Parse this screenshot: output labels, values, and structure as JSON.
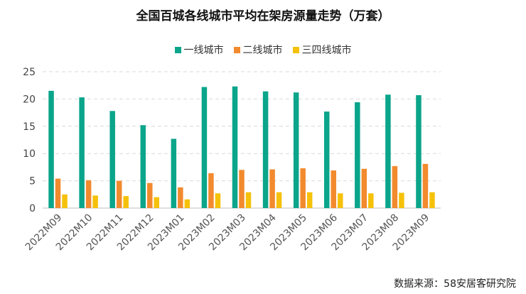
{
  "chart_data": {
    "type": "bar",
    "title": "全国百城各线城市平均在架房源量走势（万套）",
    "categories": [
      "2022M09",
      "2022M10",
      "2022M11",
      "2022M12",
      "2023M01",
      "2023M02",
      "2023M03",
      "2023M04",
      "2023M05",
      "2023M06",
      "2023M07",
      "2023M08",
      "2023M09"
    ],
    "series": [
      {
        "name": "一线城市",
        "color": "#0aa58a",
        "values": [
          21.5,
          20.3,
          17.8,
          15.2,
          12.7,
          22.2,
          22.3,
          21.4,
          21.2,
          17.7,
          19.4,
          20.8,
          20.7
        ]
      },
      {
        "name": "二线城市",
        "color": "#f28a2e",
        "values": [
          5.4,
          5.1,
          5.0,
          4.6,
          3.8,
          6.4,
          7.0,
          7.1,
          7.3,
          6.9,
          7.2,
          7.7,
          8.1
        ]
      },
      {
        "name": "三四线城市",
        "color": "#f5c10a",
        "values": [
          2.5,
          2.3,
          2.2,
          2.0,
          1.6,
          2.7,
          2.9,
          2.9,
          2.9,
          2.7,
          2.7,
          2.8,
          2.9
        ]
      }
    ],
    "ylim": [
      0,
      25
    ],
    "yticks": [
      0,
      5,
      10,
      15,
      20,
      25
    ],
    "grid": true,
    "legend_position": "top"
  },
  "source": "数据来源：58安居客研究院"
}
